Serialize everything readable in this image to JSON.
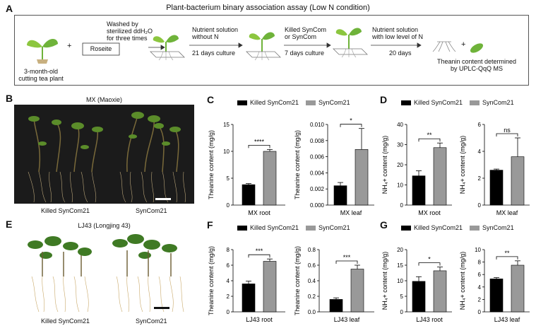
{
  "panel_a": {
    "letter": "A",
    "title": "Plant-bacterium binary association assay (Low N condition)",
    "steps": {
      "plant": "3-month-old\ncutting tea plant",
      "plus1": "+",
      "roseite": "Roseite",
      "wash": "Washed by\nsterilized ddH₂O\nfor three times",
      "nutrient_noN": "Nutrient solution\nwithout N",
      "culture21": "21 days culture",
      "killed": "Killed SynCom\nor SynCom",
      "culture7": "7 days culture",
      "nutrient_lowN": "Nutrient solution\nwith low level of N",
      "days20": "20 days",
      "plus2": "+",
      "theanine": "Theanin content determined\nby UPLC-QqQ MS"
    }
  },
  "panel_b": {
    "letter": "B",
    "title": "MX (Maoxie)",
    "left_label": "Killed SynCom21",
    "right_label": "SynCom21"
  },
  "panel_e": {
    "letter": "E",
    "title": "LJ43 (Longjing 43)",
    "left_label": "Killed SynCom21",
    "right_label": "SynCom21"
  },
  "legend": {
    "killed": "Killed SynCom21",
    "syncom": "SynCom21"
  },
  "colors": {
    "killed": "#000000",
    "syncom": "#999999"
  },
  "chart_data": [
    {
      "panel": "C",
      "type": "bar",
      "xlabel": "MX root",
      "ylabel": "Theanine content (mg/g)",
      "ylim": [
        0,
        15
      ],
      "yticks": [
        0,
        5,
        10,
        15
      ],
      "tick_labels": [
        "0",
        "5",
        "10",
        "15"
      ],
      "series": [
        {
          "name": "Killed SynCom21",
          "value": 3.8,
          "err": 0.2
        },
        {
          "name": "SynCom21",
          "value": 10.0,
          "err": 0.35
        }
      ],
      "significance": "****"
    },
    {
      "panel": "C",
      "type": "bar",
      "xlabel": "MX leaf",
      "ylabel": "Theanine content (mg/g)",
      "ylim": [
        0,
        0.01
      ],
      "yticks": [
        0,
        0.002,
        0.004,
        0.006,
        0.008,
        0.01
      ],
      "tick_labels": [
        "0.000",
        "0.002",
        "0.004",
        "0.006",
        "0.008",
        "0.010"
      ],
      "series": [
        {
          "name": "Killed SynCom21",
          "value": 0.0024,
          "err": 0.0004
        },
        {
          "name": "SynCom21",
          "value": 0.0069,
          "err": 0.0026
        }
      ],
      "significance": "*"
    },
    {
      "panel": "D",
      "type": "bar",
      "xlabel": "MX root",
      "ylabel": "NH₄+ content (mg/g)",
      "ylim": [
        0,
        40
      ],
      "yticks": [
        0,
        10,
        20,
        30,
        40
      ],
      "tick_labels": [
        "0",
        "10",
        "20",
        "30",
        "40"
      ],
      "series": [
        {
          "name": "Killed SynCom21",
          "value": 14.5,
          "err": 2.5
        },
        {
          "name": "SynCom21",
          "value": 28.5,
          "err": 2.3
        }
      ],
      "significance": "**"
    },
    {
      "panel": "D",
      "type": "bar",
      "xlabel": "MX leaf",
      "ylabel": "NH₄+ content (mg/g)",
      "ylim": [
        0,
        6
      ],
      "yticks": [
        0,
        2,
        4,
        6
      ],
      "tick_labels": [
        "0",
        "2",
        "4",
        "6"
      ],
      "series": [
        {
          "name": "Killed SynCom21",
          "value": 2.6,
          "err": 0.08
        },
        {
          "name": "SynCom21",
          "value": 3.6,
          "err": 1.4
        }
      ],
      "significance": "ns"
    },
    {
      "panel": "F",
      "type": "bar",
      "xlabel": "LJ43 root",
      "ylabel": "Theanine content (mg/g)",
      "ylim": [
        0,
        8
      ],
      "yticks": [
        0,
        2,
        4,
        6,
        8
      ],
      "tick_labels": [
        "0",
        "2",
        "4",
        "6",
        "8"
      ],
      "series": [
        {
          "name": "Killed SynCom21",
          "value": 3.6,
          "err": 0.35
        },
        {
          "name": "SynCom21",
          "value": 6.5,
          "err": 0.3
        }
      ],
      "significance": "***"
    },
    {
      "panel": "F",
      "type": "bar",
      "xlabel": "LJ43 leaf",
      "ylabel": "Theanine content (mg/g)",
      "ylim": [
        0,
        0.8
      ],
      "yticks": [
        0,
        0.2,
        0.4,
        0.6,
        0.8
      ],
      "tick_labels": [
        "0.0",
        "0.2",
        "0.4",
        "0.6",
        "0.8"
      ],
      "series": [
        {
          "name": "Killed SynCom21",
          "value": 0.16,
          "err": 0.02
        },
        {
          "name": "SynCom21",
          "value": 0.55,
          "err": 0.05
        }
      ],
      "significance": "***"
    },
    {
      "panel": "G",
      "type": "bar",
      "xlabel": "LJ43 root",
      "ylabel": "NH₄+ content (mg/g)",
      "ylim": [
        0,
        20
      ],
      "yticks": [
        0,
        5,
        10,
        15,
        20
      ],
      "tick_labels": [
        "0",
        "5",
        "10",
        "15",
        "20"
      ],
      "series": [
        {
          "name": "Killed SynCom21",
          "value": 9.8,
          "err": 1.5
        },
        {
          "name": "SynCom21",
          "value": 13.2,
          "err": 1.2
        }
      ],
      "significance": "*"
    },
    {
      "panel": "G",
      "type": "bar",
      "xlabel": "LJ43 leaf",
      "ylabel": "NH₄+ content (mg/g)",
      "ylim": [
        0,
        10
      ],
      "yticks": [
        0,
        2,
        4,
        6,
        8,
        10
      ],
      "tick_labels": [
        "0",
        "2",
        "4",
        "6",
        "8",
        "10"
      ],
      "series": [
        {
          "name": "Killed SynCom21",
          "value": 5.3,
          "err": 0.2
        },
        {
          "name": "SynCom21",
          "value": 7.5,
          "err": 0.7
        }
      ],
      "significance": "**"
    }
  ],
  "panel_letters": {
    "c": "C",
    "d": "D",
    "f": "F",
    "g": "G"
  }
}
